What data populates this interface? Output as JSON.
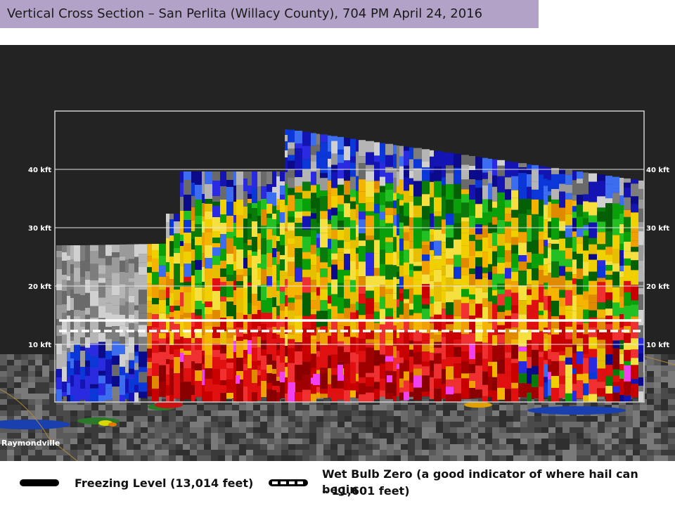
{
  "title": "Vertical Cross Section – San Perlita (Willacy County), 704 PM April 24, 2016",
  "axis": {
    "left_labels": [
      "40 kft",
      "30 kft",
      "20 kft",
      "10 kft"
    ],
    "right_labels": [
      "40 kft",
      "30 kft",
      "20 kft",
      "10 kft"
    ]
  },
  "map_label": "Raymondville",
  "legend": {
    "freezing": {
      "label": "Freezing Level (13,014 feet)",
      "icon": "solid-line-icon"
    },
    "wetbulb": {
      "label_line1": "Wet Bulb Zero (a good indicator of where hail can begin",
      "label_line2": "– 11,601 feet)",
      "icon": "dashed-line-icon"
    }
  },
  "colors": {
    "title_bg": "#b3a2c7",
    "radar_bg": "#232323",
    "freezing_line": "#ffffff",
    "wetbulb_line": "#ffffff"
  }
}
